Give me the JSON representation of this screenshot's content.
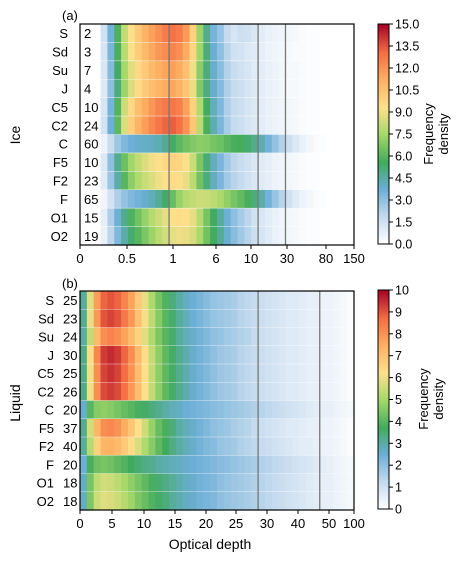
{
  "chart_data": [
    {
      "type": "heatmap",
      "panel_label": "(a)",
      "ylabel": "Ice",
      "rows": [
        "S",
        "Sd",
        "Su",
        "J",
        "C5",
        "C2",
        "C",
        "F5",
        "F2",
        "F",
        "O1",
        "O2"
      ],
      "row_counts": [
        "2",
        "3",
        "7",
        "4",
        "10",
        "24",
        "60",
        "10",
        "23",
        "65",
        "15",
        "19"
      ],
      "x_ticks": [
        "0",
        "0.5",
        "1",
        "6",
        "10",
        "30",
        "80",
        "150"
      ],
      "colorbar": {
        "label": "Frequency density",
        "ticks": [
          "15.0",
          "13.5",
          "12.0",
          "10.5",
          "9.0",
          "7.5",
          "6.0",
          "4.5",
          "3.0",
          "1.5",
          "0.0"
        ],
        "range": [
          0,
          15
        ]
      },
      "n_bins": 40,
      "vertical_lines_at_bins": [
        13,
        26,
        30
      ],
      "values": [
        [
          0,
          0,
          0,
          1.5,
          3.6,
          5.8,
          8.1,
          9.3,
          10.2,
          11,
          11.6,
          12.1,
          12.6,
          12.9,
          12.6,
          11.8,
          9.9,
          7.3,
          4.8,
          3.5,
          2.8,
          1.8,
          1.3,
          1.6,
          1.5,
          1.2,
          0.9,
          0.7,
          0.6,
          0.5,
          0.4,
          0.3,
          0.2,
          0.1,
          0.1,
          0,
          0,
          0,
          0,
          0
        ],
        [
          0,
          0,
          0,
          1.3,
          3.4,
          5.7,
          7.9,
          9.2,
          10.1,
          10.8,
          11.4,
          11.9,
          12.2,
          12.4,
          12.1,
          11.3,
          9.7,
          7.4,
          5.1,
          3.8,
          3,
          2.1,
          1.5,
          1.4,
          1.1,
          1,
          0.8,
          0.6,
          0.5,
          0.4,
          0.3,
          0.2,
          0.2,
          0.1,
          0.1,
          0,
          0,
          0,
          0,
          0
        ],
        [
          0,
          0,
          0,
          1.2,
          3.2,
          5.4,
          7.5,
          8.7,
          9.6,
          10.2,
          10.8,
          11.2,
          11.5,
          11.6,
          11.3,
          10.5,
          9,
          7,
          5.1,
          3.9,
          3.1,
          2.2,
          1.7,
          1.5,
          1.3,
          1,
          0.9,
          0.7,
          0.6,
          0.4,
          0.3,
          0.3,
          0.2,
          0.1,
          0.1,
          0,
          0,
          0,
          0,
          0
        ],
        [
          0,
          0,
          0,
          1.1,
          3,
          5.1,
          7.3,
          8.6,
          9.5,
          10.1,
          10.6,
          11,
          11.3,
          11.4,
          11,
          10.3,
          8.9,
          6.8,
          5,
          3.9,
          3.2,
          2.3,
          1.8,
          1.6,
          1.3,
          1.1,
          0.9,
          0.7,
          0.6,
          0.4,
          0.3,
          0.3,
          0.2,
          0.1,
          0.1,
          0,
          0,
          0,
          0,
          0
        ],
        [
          0,
          0,
          0,
          1.3,
          3.5,
          5.9,
          8.3,
          9.6,
          10.6,
          11.3,
          11.9,
          12.4,
          12.7,
          12.8,
          12.5,
          11.6,
          9.9,
          7.7,
          5.5,
          4.1,
          3.3,
          2.3,
          1.8,
          1.6,
          1.3,
          1.1,
          0.9,
          0.7,
          0.6,
          0.5,
          0.4,
          0.3,
          0.2,
          0.1,
          0.1,
          0,
          0,
          0,
          0,
          0
        ],
        [
          0,
          0,
          0,
          1.4,
          3.7,
          6.1,
          8.6,
          10,
          11,
          11.7,
          12.3,
          12.8,
          13.2,
          13.3,
          12.9,
          12,
          10.3,
          7.9,
          5.7,
          4.3,
          3.4,
          2.4,
          1.8,
          1.6,
          1.3,
          1.1,
          0.9,
          0.7,
          0.6,
          0.5,
          0.4,
          0.3,
          0.2,
          0.1,
          0.1,
          0,
          0,
          0,
          0,
          0
        ],
        [
          0,
          0,
          0,
          0.6,
          1.7,
          2.7,
          3.3,
          3.7,
          3.9,
          4,
          4.1,
          4.3,
          4.8,
          5.4,
          6.1,
          6.5,
          6.8,
          7,
          6.9,
          6.6,
          6.4,
          6,
          5.7,
          5.6,
          5.3,
          4.9,
          4.3,
          3.6,
          2.9,
          2.2,
          1.6,
          1.1,
          0.7,
          0.4,
          0.2,
          0.1,
          0,
          0,
          0,
          0
        ],
        [
          0,
          0,
          0,
          1.1,
          3,
          4.8,
          6.4,
          7.4,
          8.1,
          8.6,
          9,
          9.3,
          9.6,
          9.8,
          9.7,
          9.2,
          8.2,
          6.7,
          5.2,
          4.1,
          3.4,
          2.6,
          2,
          1.7,
          1.5,
          1.2,
          1,
          0.8,
          0.6,
          0.5,
          0.4,
          0.3,
          0.2,
          0.1,
          0.1,
          0,
          0,
          0,
          0,
          0
        ],
        [
          0,
          0,
          0,
          1,
          2.7,
          4.4,
          6,
          7,
          7.7,
          8.2,
          8.6,
          9,
          9.3,
          9.5,
          9.4,
          8.9,
          7.9,
          6.5,
          5.1,
          4.1,
          3.4,
          2.6,
          2.1,
          1.8,
          1.5,
          1.2,
          1,
          0.8,
          0.6,
          0.5,
          0.4,
          0.3,
          0.2,
          0.1,
          0.1,
          0,
          0,
          0,
          0,
          0
        ],
        [
          0,
          0,
          0,
          0.5,
          1.4,
          2.3,
          2.9,
          3.3,
          3.6,
          3.9,
          4.2,
          4.7,
          5.4,
          6.3,
          7.2,
          7.8,
          8.1,
          8.3,
          8.2,
          8,
          7.6,
          7.1,
          6.6,
          6.2,
          5.7,
          5.1,
          4.4,
          3.6,
          2.8,
          2.1,
          1.5,
          1,
          0.6,
          0.4,
          0.2,
          0.1,
          0,
          0,
          0,
          0
        ],
        [
          0,
          0,
          0,
          0.8,
          2.3,
          3.7,
          4.9,
          5.8,
          6.5,
          7.2,
          7.8,
          8.3,
          8.8,
          9.2,
          9.4,
          9.3,
          8.8,
          7.8,
          6.6,
          5.5,
          4.6,
          3.7,
          3,
          2.5,
          2,
          1.5,
          1.2,
          0.9,
          0.7,
          0.5,
          0.4,
          0.3,
          0.2,
          0.1,
          0.1,
          0,
          0,
          0,
          0,
          0
        ],
        [
          0,
          0,
          0,
          0.7,
          2,
          3.3,
          4.4,
          5.3,
          6,
          6.7,
          7.3,
          7.9,
          8.4,
          8.8,
          9,
          8.9,
          8.5,
          7.6,
          6.5,
          5.5,
          4.7,
          3.8,
          3.1,
          2.6,
          2.1,
          1.6,
          1.3,
          1,
          0.7,
          0.5,
          0.4,
          0.3,
          0.2,
          0.1,
          0.1,
          0,
          0,
          0,
          0,
          0
        ]
      ]
    },
    {
      "type": "heatmap",
      "panel_label": "(b)",
      "ylabel": "Liquid",
      "xlabel": "Optical depth",
      "rows": [
        "S",
        "Sd",
        "Su",
        "J",
        "C5",
        "C2",
        "C",
        "F5",
        "F2",
        "F",
        "O1",
        "O2"
      ],
      "row_counts": [
        "25",
        "23",
        "24",
        "30",
        "25",
        "26",
        "20",
        "37",
        "40",
        "20",
        "18",
        "18"
      ],
      "x_ticks": [
        "0",
        "5",
        "10",
        "15",
        "20",
        "25",
        "30",
        "40",
        "50",
        "100"
      ],
      "colorbar": {
        "label": "Frequency density",
        "ticks": [
          "10",
          "9",
          "8",
          "7",
          "6",
          "5",
          "4",
          "3",
          "2",
          "1",
          "0"
        ],
        "range": [
          0,
          10
        ]
      },
      "n_bins": 40,
      "vertical_lines_at_bins": [
        26,
        35
      ],
      "values": [
        [
          3.1,
          5.8,
          7.8,
          8.8,
          9,
          8.8,
          8.3,
          7.7,
          6.8,
          5.9,
          5.1,
          4.4,
          3.9,
          3.4,
          3,
          2.7,
          2.5,
          2.3,
          2.1,
          1.9,
          1.8,
          1.7,
          1.6,
          1.4,
          1.3,
          1.2,
          1.1,
          1,
          0.9,
          0.8,
          0.7,
          0.7,
          0.6,
          0.5,
          0.5,
          0.4,
          0.4,
          0.3,
          0.2,
          0.1
        ],
        [
          3.2,
          5.9,
          7.9,
          9,
          9.2,
          9,
          8.5,
          7.9,
          7,
          6.1,
          5.3,
          4.6,
          4,
          3.5,
          3.1,
          2.8,
          2.5,
          2.3,
          2.1,
          1.9,
          1.8,
          1.7,
          1.6,
          1.4,
          1.3,
          1.2,
          1.1,
          1,
          0.9,
          0.8,
          0.7,
          0.7,
          0.6,
          0.5,
          0.5,
          0.4,
          0.4,
          0.3,
          0.2,
          0.1
        ],
        [
          3,
          5.4,
          7.2,
          8.1,
          8.3,
          8.1,
          7.7,
          7.2,
          6.5,
          5.8,
          5.1,
          4.5,
          4,
          3.5,
          3.1,
          2.8,
          2.6,
          2.4,
          2.2,
          2,
          1.9,
          1.7,
          1.6,
          1.5,
          1.4,
          1.2,
          1.1,
          1,
          0.9,
          0.8,
          0.7,
          0.7,
          0.6,
          0.5,
          0.5,
          0.4,
          0.4,
          0.3,
          0.2,
          0.1
        ],
        [
          3.3,
          6.1,
          8.2,
          9.3,
          9.5,
          9.3,
          8.8,
          8.1,
          7.2,
          6.3,
          5.4,
          4.7,
          4.1,
          3.6,
          3.2,
          2.9,
          2.6,
          2.4,
          2.2,
          2,
          1.8,
          1.7,
          1.6,
          1.4,
          1.3,
          1.2,
          1.1,
          1,
          0.9,
          0.8,
          0.7,
          0.7,
          0.6,
          0.5,
          0.5,
          0.4,
          0.4,
          0.3,
          0.2,
          0.1
        ],
        [
          3.3,
          6,
          8.1,
          9.2,
          9.4,
          9.2,
          8.7,
          8,
          7.1,
          6.2,
          5.4,
          4.7,
          4.1,
          3.6,
          3.2,
          2.9,
          2.6,
          2.4,
          2.2,
          2,
          1.8,
          1.7,
          1.6,
          1.4,
          1.3,
          1.2,
          1.1,
          1,
          0.9,
          0.8,
          0.7,
          0.7,
          0.6,
          0.5,
          0.5,
          0.4,
          0.4,
          0.3,
          0.2,
          0.1
        ],
        [
          3.3,
          6,
          8.1,
          9.1,
          9.3,
          9.1,
          8.6,
          7.9,
          7.1,
          6.2,
          5.4,
          4.7,
          4.1,
          3.6,
          3.2,
          2.9,
          2.6,
          2.4,
          2.2,
          2,
          1.8,
          1.7,
          1.6,
          1.4,
          1.3,
          1.2,
          1.1,
          1,
          0.9,
          0.8,
          0.7,
          0.7,
          0.6,
          0.5,
          0.5,
          0.4,
          0.4,
          0.3,
          0.2,
          0.1
        ],
        [
          2.6,
          4,
          4.6,
          4.7,
          4.6,
          4.4,
          4.2,
          4,
          3.8,
          3.6,
          3.4,
          3.2,
          3,
          2.8,
          2.7,
          2.5,
          2.4,
          2.3,
          2.2,
          2.1,
          2,
          1.9,
          1.8,
          1.7,
          1.6,
          1.5,
          1.4,
          1.3,
          1.2,
          1.1,
          1,
          0.9,
          0.8,
          0.7,
          0.6,
          0.5,
          0.5,
          0.4,
          0.3,
          0.2
        ],
        [
          3.2,
          5.6,
          7.3,
          8.1,
          8.2,
          8,
          7.5,
          6.9,
          6.2,
          5.5,
          4.8,
          4.2,
          3.8,
          3.4,
          3,
          2.8,
          2.6,
          2.4,
          2.2,
          2,
          1.9,
          1.8,
          1.6,
          1.5,
          1.4,
          1.2,
          1.1,
          1,
          0.9,
          0.8,
          0.7,
          0.7,
          0.6,
          0.5,
          0.5,
          0.4,
          0.4,
          0.3,
          0.2,
          0.1
        ],
        [
          3.1,
          5.2,
          6.6,
          7.3,
          7.4,
          7.2,
          6.8,
          6.3,
          5.7,
          5.1,
          4.6,
          4.1,
          3.7,
          3.3,
          3,
          2.8,
          2.6,
          2.4,
          2.2,
          2.1,
          1.9,
          1.8,
          1.7,
          1.5,
          1.4,
          1.3,
          1.2,
          1.1,
          1,
          0.9,
          0.8,
          0.7,
          0.6,
          0.6,
          0.5,
          0.4,
          0.4,
          0.3,
          0.2,
          0.1
        ],
        [
          2.5,
          3.8,
          4.3,
          4.4,
          4.3,
          4.1,
          3.9,
          3.7,
          3.5,
          3.3,
          3.2,
          3,
          2.9,
          2.8,
          2.7,
          2.6,
          2.5,
          2.4,
          2.3,
          2.2,
          2.1,
          2,
          1.9,
          1.8,
          1.7,
          1.6,
          1.5,
          1.4,
          1.3,
          1.2,
          1.1,
          1,
          0.9,
          0.8,
          0.7,
          0.6,
          0.5,
          0.4,
          0.3,
          0.2
        ],
        [
          2.7,
          4.4,
          5.3,
          5.6,
          5.5,
          5.3,
          5,
          4.7,
          4.4,
          4.1,
          3.8,
          3.5,
          3.3,
          3.1,
          2.9,
          2.7,
          2.6,
          2.4,
          2.3,
          2.2,
          2,
          1.9,
          1.8,
          1.7,
          1.6,
          1.5,
          1.4,
          1.3,
          1.2,
          1.1,
          1,
          0.9,
          0.8,
          0.7,
          0.6,
          0.5,
          0.5,
          0.4,
          0.3,
          0.2
        ],
        [
          2.7,
          4.5,
          5.5,
          5.8,
          5.7,
          5.5,
          5.2,
          4.9,
          4.5,
          4.2,
          3.9,
          3.6,
          3.4,
          3.1,
          2.9,
          2.7,
          2.6,
          2.4,
          2.3,
          2.2,
          2,
          1.9,
          1.8,
          1.7,
          1.6,
          1.5,
          1.4,
          1.3,
          1.2,
          1.1,
          1,
          0.9,
          0.8,
          0.7,
          0.6,
          0.5,
          0.5,
          0.4,
          0.3,
          0.2
        ]
      ]
    }
  ]
}
